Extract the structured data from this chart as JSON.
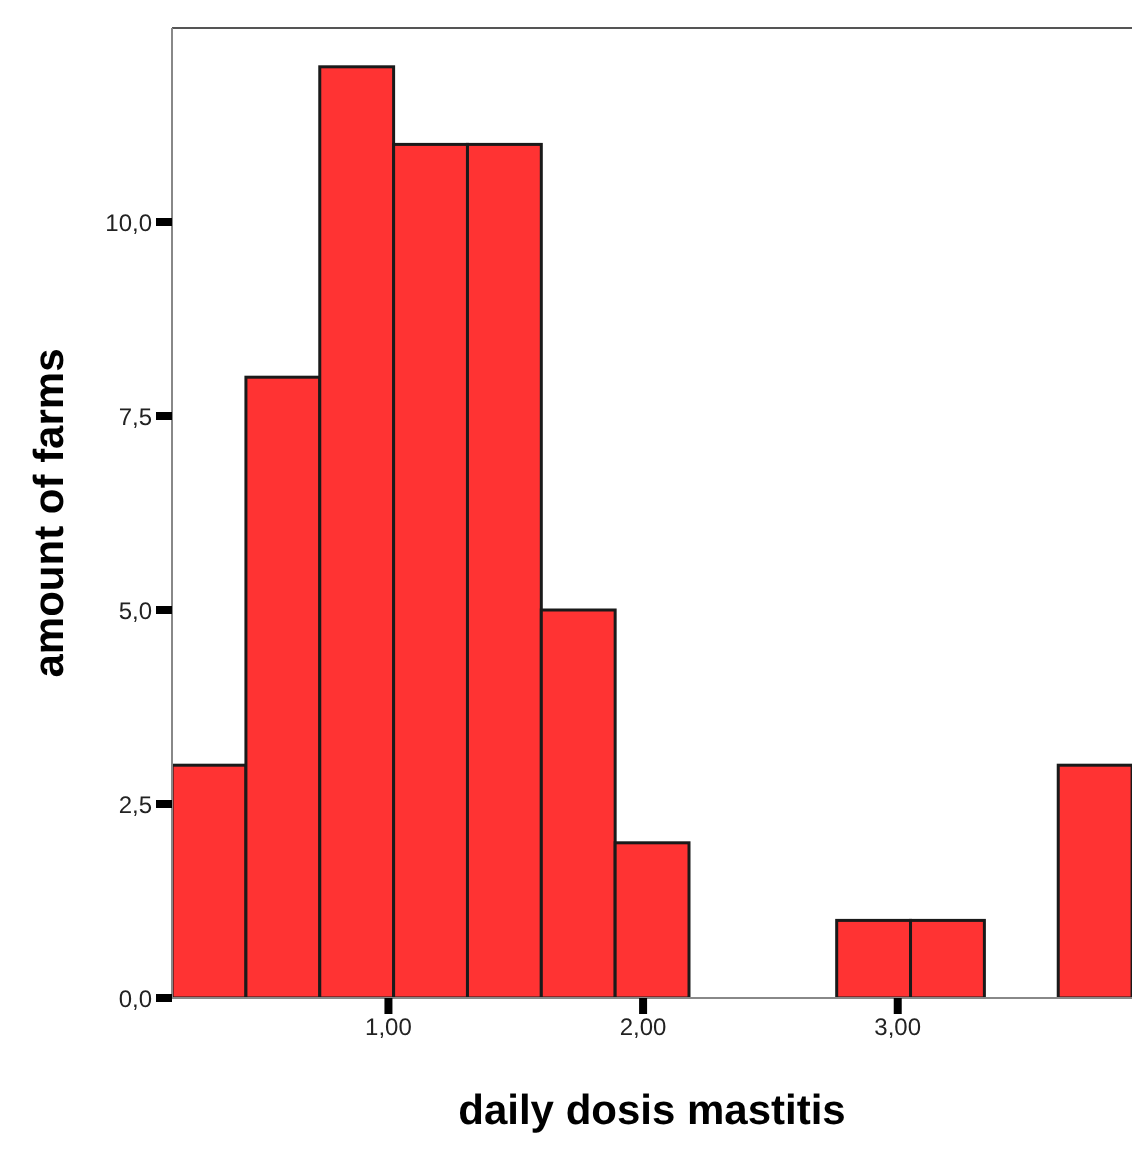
{
  "chart_data": {
    "type": "histogram",
    "xlabel": "daily dosis mastitis",
    "ylabel": "amount of farms",
    "bins": [
      0.15,
      0.44,
      0.73,
      1.02,
      1.31,
      1.6,
      1.89,
      2.18,
      2.47,
      2.76,
      3.05,
      3.34,
      3.63,
      3.92
    ],
    "values": [
      3,
      8,
      12,
      11,
      11,
      5,
      2,
      0,
      0,
      1,
      1,
      0,
      3
    ],
    "color": "#ff3333",
    "xlim": [
      0.15,
      3.92
    ],
    "xticks": [
      {
        "value": 1,
        "label": "1,00"
      },
      {
        "value": 2,
        "label": "2,00"
      },
      {
        "value": 3,
        "label": "3,00"
      }
    ],
    "ylim": [
      0,
      12.5
    ],
    "yticks": [
      {
        "value": 0,
        "label": "0,0"
      },
      {
        "value": 2.5,
        "label": "2,5"
      },
      {
        "value": 5,
        "label": "5,0"
      },
      {
        "value": 7.5,
        "label": "7,5"
      },
      {
        "value": 10,
        "label": "10,0"
      }
    ],
    "grid": false,
    "legend": false
  }
}
